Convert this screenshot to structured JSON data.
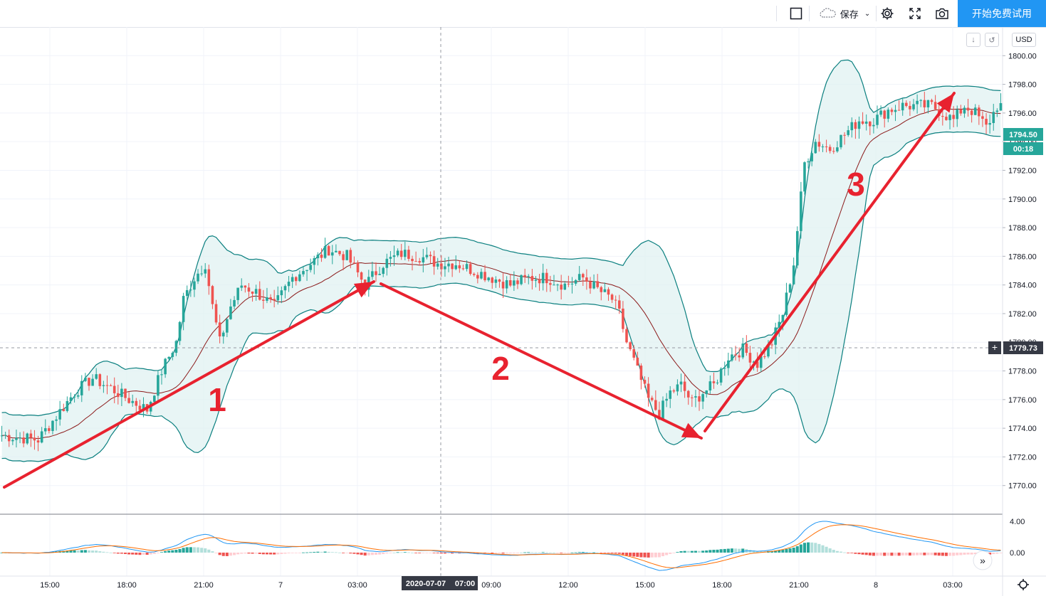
{
  "toolbar": {
    "save_label": "保存",
    "trial_label": "开始免费试用"
  },
  "price_panel": {
    "currency": "USD",
    "last_price": "1794.50",
    "countdown": "00:18",
    "crosshair_price": "1779.73",
    "crosshair_time": "2020-07-07",
    "crosshair_time2": "07:00"
  },
  "colors": {
    "up": "#26a69a",
    "down": "#ef5350",
    "band": "#0a7f7f",
    "band_fill": "#e0f2f1",
    "basis": "#8b1a1a",
    "arrow": "#e8222f",
    "macd": "#2196f3",
    "signal": "#ff6d00"
  },
  "annotations": [
    {
      "label": "1"
    },
    {
      "label": "2"
    },
    {
      "label": "3"
    }
  ],
  "chart_data": {
    "type": "candlestick",
    "yaxis": {
      "min": 1768,
      "max": 1802,
      "ticks": [
        "1770.00",
        "1772.00",
        "1774.00",
        "1776.00",
        "1778.00",
        "1780.00",
        "1782.00",
        "1784.00",
        "1786.00",
        "1788.00",
        "1790.00",
        "1792.00",
        "1794.00",
        "1796.00",
        "1798.00",
        "1800.00"
      ]
    },
    "xaxis": {
      "ticks": [
        "15:00",
        "18:00",
        "21:00",
        "7",
        "03:00",
        "09:00",
        "12:00",
        "15:00",
        "18:00",
        "21:00",
        "8",
        "03:00"
      ]
    },
    "price_path": [
      [
        0,
        1773.5
      ],
      [
        10,
        1773.2
      ],
      [
        20,
        1776.5
      ],
      [
        25,
        1777.5
      ],
      [
        30,
        1776.8
      ],
      [
        35,
        1776.0
      ],
      [
        40,
        1775.3
      ],
      [
        44,
        1778.0
      ],
      [
        48,
        1780.0
      ],
      [
        50,
        1783.0
      ],
      [
        53,
        1784.5
      ],
      [
        56,
        1785.5
      ],
      [
        58,
        1782.5
      ],
      [
        60,
        1780.0
      ],
      [
        63,
        1782.5
      ],
      [
        66,
        1784.0
      ],
      [
        70,
        1783.5
      ],
      [
        75,
        1782.5
      ],
      [
        80,
        1784.5
      ],
      [
        85,
        1785.5
      ],
      [
        90,
        1786.5
      ],
      [
        95,
        1786.0
      ],
      [
        100,
        1784.0
      ],
      [
        105,
        1785.5
      ],
      [
        110,
        1786.2
      ],
      [
        115,
        1786.0
      ],
      [
        120,
        1785.5
      ],
      [
        125,
        1785.5
      ],
      [
        130,
        1785.0
      ],
      [
        135,
        1784.5
      ],
      [
        140,
        1784.0
      ],
      [
        145,
        1784.5
      ],
      [
        150,
        1784.5
      ],
      [
        155,
        1784.0
      ],
      [
        160,
        1784.5
      ],
      [
        165,
        1783.5
      ],
      [
        168,
        1783.0
      ],
      [
        170,
        1782.0
      ],
      [
        172,
        1780.0
      ],
      [
        175,
        1778.0
      ],
      [
        178,
        1776.0
      ],
      [
        181,
        1775.0
      ],
      [
        184,
        1776.5
      ],
      [
        187,
        1777.0
      ],
      [
        190,
        1775.8
      ],
      [
        193,
        1776.5
      ],
      [
        196,
        1777.0
      ],
      [
        200,
        1779.0
      ],
      [
        204,
        1779.5
      ],
      [
        208,
        1778.5
      ],
      [
        212,
        1780.0
      ],
      [
        215,
        1782.0
      ],
      [
        218,
        1785.5
      ],
      [
        221,
        1792.5
      ],
      [
        224,
        1794.0
      ],
      [
        228,
        1793.5
      ],
      [
        232,
        1794.5
      ],
      [
        236,
        1795.5
      ],
      [
        240,
        1795.5
      ],
      [
        244,
        1796.2
      ],
      [
        248,
        1796.5
      ],
      [
        252,
        1796.5
      ],
      [
        256,
        1796.5
      ],
      [
        259,
        1796.0
      ],
      [
        262,
        1795.5
      ],
      [
        265,
        1796.5
      ],
      [
        268,
        1796.0
      ],
      [
        271,
        1795.0
      ],
      [
        274,
        1796.5
      ]
    ],
    "indicators": [
      "Bollinger Bands",
      "MACD"
    ],
    "macd_axis_ticks": [
      "4.00",
      "0.00"
    ]
  }
}
